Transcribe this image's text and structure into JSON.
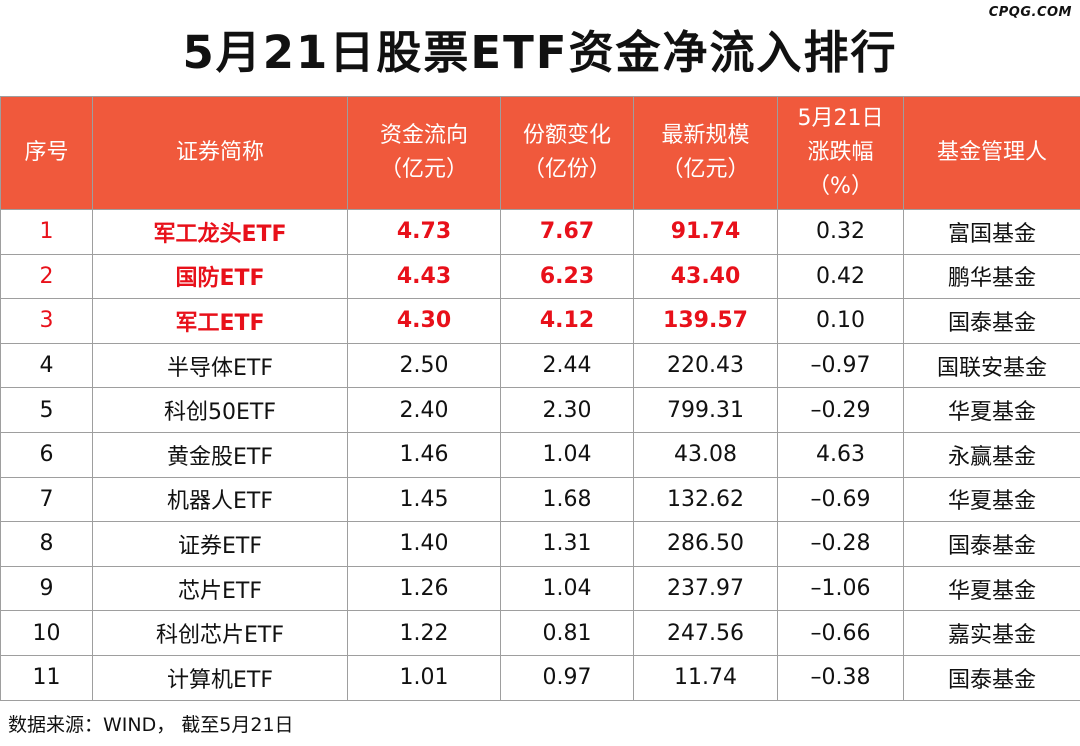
{
  "watermark": "CPQG.COM",
  "title": "5月21日股票ETF资金净流入排行",
  "colors": {
    "header_bg": "#f0593c",
    "header_text": "#ffffff",
    "highlight_text": "#e8101a",
    "normal_text": "#111111",
    "border": "#9e9e9e"
  },
  "columns": [
    {
      "lines": [
        "序号"
      ]
    },
    {
      "lines": [
        "证券简称"
      ]
    },
    {
      "lines": [
        "资金流向",
        "（亿元）"
      ]
    },
    {
      "lines": [
        "份额变化",
        "（亿份）"
      ]
    },
    {
      "lines": [
        "最新规模",
        "（亿元）"
      ]
    },
    {
      "lines": [
        "5月21日",
        "涨跌幅",
        "（%）"
      ]
    },
    {
      "lines": [
        "基金管理人"
      ]
    }
  ],
  "rows": [
    {
      "rank": "1",
      "name": "军工龙头ETF",
      "flow": "4.73",
      "share_change": "7.67",
      "scale": "91.74",
      "change_pct": "0.32",
      "manager": "富国基金",
      "highlight": true
    },
    {
      "rank": "2",
      "name": "国防ETF",
      "flow": "4.43",
      "share_change": "6.23",
      "scale": "43.40",
      "change_pct": "0.42",
      "manager": "鹏华基金",
      "highlight": true
    },
    {
      "rank": "3",
      "name": "军工ETF",
      "flow": "4.30",
      "share_change": "4.12",
      "scale": "139.57",
      "change_pct": "0.10",
      "manager": "国泰基金",
      "highlight": true
    },
    {
      "rank": "4",
      "name": "半导体ETF",
      "flow": "2.50",
      "share_change": "2.44",
      "scale": "220.43",
      "change_pct": "–0.97",
      "manager": "国联安基金",
      "highlight": false
    },
    {
      "rank": "5",
      "name": "科创50ETF",
      "flow": "2.40",
      "share_change": "2.30",
      "scale": "799.31",
      "change_pct": "–0.29",
      "manager": "华夏基金",
      "highlight": false
    },
    {
      "rank": "6",
      "name": "黄金股ETF",
      "flow": "1.46",
      "share_change": "1.04",
      "scale": "43.08",
      "change_pct": "4.63",
      "manager": "永赢基金",
      "highlight": false
    },
    {
      "rank": "7",
      "name": "机器人ETF",
      "flow": "1.45",
      "share_change": "1.68",
      "scale": "132.62",
      "change_pct": "–0.69",
      "manager": "华夏基金",
      "highlight": false
    },
    {
      "rank": "8",
      "name": "证券ETF",
      "flow": "1.40",
      "share_change": "1.31",
      "scale": "286.50",
      "change_pct": "–0.28",
      "manager": "国泰基金",
      "highlight": false
    },
    {
      "rank": "9",
      "name": "芯片ETF",
      "flow": "1.26",
      "share_change": "1.04",
      "scale": "237.97",
      "change_pct": "–1.06",
      "manager": "华夏基金",
      "highlight": false
    },
    {
      "rank": "10",
      "name": "科创芯片ETF",
      "flow": "1.22",
      "share_change": "0.81",
      "scale": "247.56",
      "change_pct": "–0.66",
      "manager": "嘉实基金",
      "highlight": false
    },
    {
      "rank": "11",
      "name": "计算机ETF",
      "flow": "1.01",
      "share_change": "0.97",
      "scale": "11.74",
      "change_pct": "–0.38",
      "manager": "国泰基金",
      "highlight": false
    }
  ],
  "footer": "数据来源：WIND， 截至5月21日"
}
